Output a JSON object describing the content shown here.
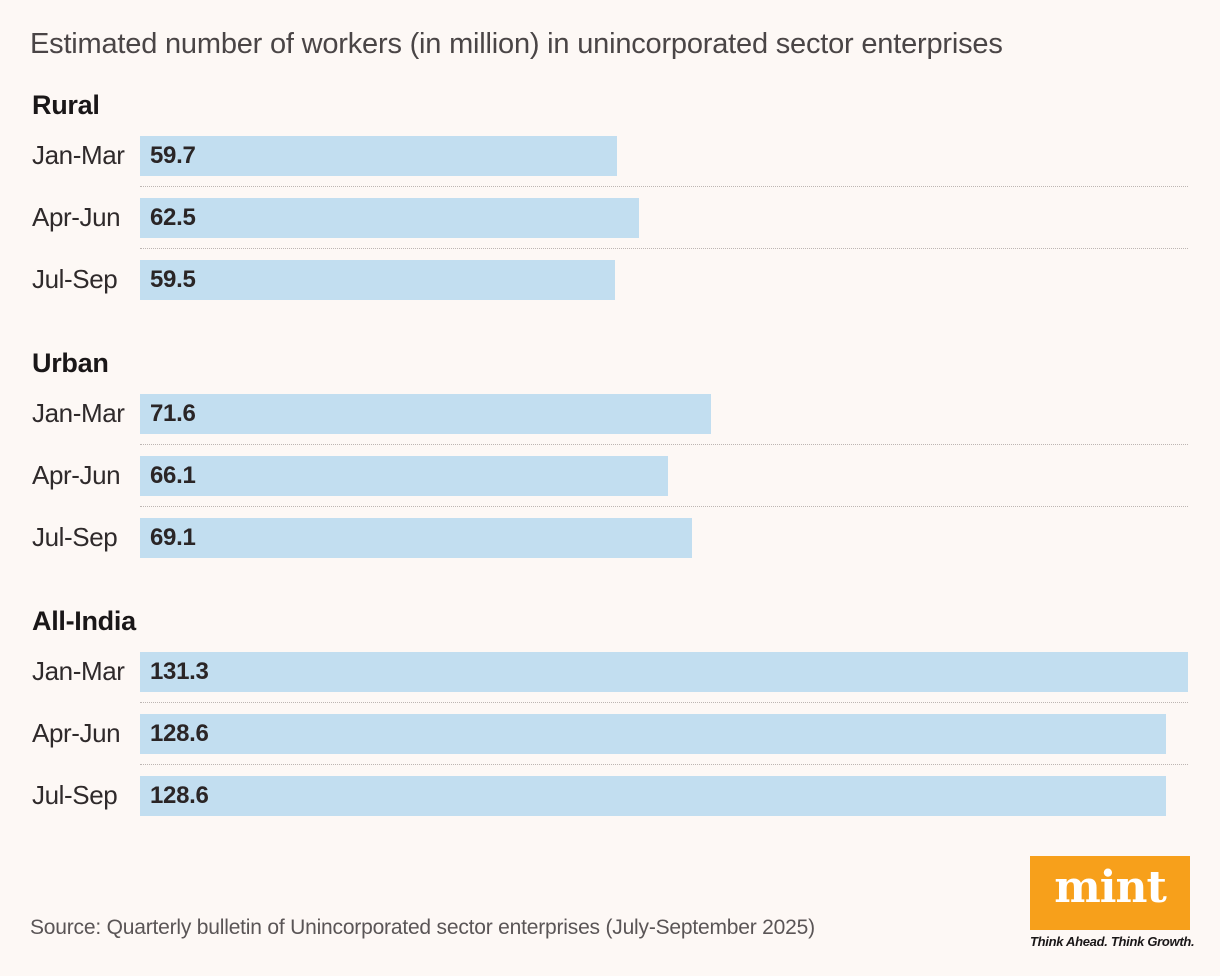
{
  "chart_data": {
    "type": "bar",
    "orientation": "horizontal",
    "title": "Estimated number of workers (in million) in unincorporated sector enterprises",
    "categories": [
      "Jan-Mar",
      "Apr-Jun",
      "Jul-Sep"
    ],
    "groups": [
      {
        "name": "Rural",
        "values": [
          59.7,
          62.5,
          59.5
        ]
      },
      {
        "name": "Urban",
        "values": [
          71.6,
          66.1,
          69.1
        ]
      },
      {
        "name": "All-India",
        "values": [
          131.3,
          128.6,
          128.6
        ]
      }
    ],
    "xlim": [
      0,
      131.3
    ],
    "value_labels": true,
    "grid": false,
    "bar_color": "#c2def0"
  },
  "source": "Source: Quarterly bulletin of Unincorporated sector enterprises (July-September 2025)",
  "logo": {
    "text": "mint",
    "tagline": "Think Ahead. Think Growth.",
    "color": "#f7a01b"
  }
}
